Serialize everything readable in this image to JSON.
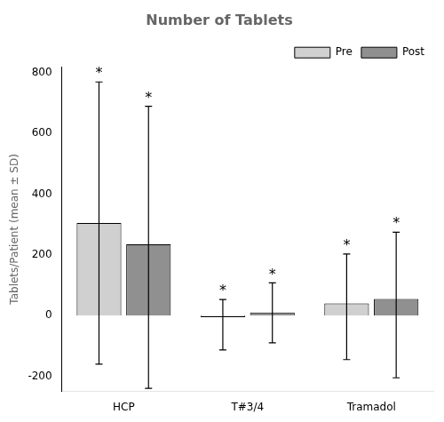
{
  "chart_data": {
    "type": "bar",
    "title": "Number of Tablets",
    "ylabel": "Tablets/Patient (mean ± SD)",
    "categories": [
      "HCP",
      "T#3/4",
      "Tramadol"
    ],
    "series": [
      {
        "name": "Pre",
        "color": "#d0d0d0",
        "values": [
          305,
          -5,
          40
        ],
        "sd_upper": [
          465,
          58,
          163
        ],
        "sd_lower": [
          465,
          108,
          185
        ],
        "annotations": [
          "*",
          "*",
          "*"
        ]
      },
      {
        "name": "Post",
        "color": "#909090",
        "values": [
          235,
          10,
          55
        ],
        "sd_upper": [
          455,
          98,
          220
        ],
        "sd_lower": [
          475,
          100,
          260
        ],
        "annotations": [
          "*",
          "*",
          "*"
        ]
      }
    ],
    "ylim": [
      -250,
      820
    ],
    "yticks": [
      -200,
      0,
      200,
      400,
      600,
      800
    ],
    "grid": false,
    "legend": "upper right"
  }
}
